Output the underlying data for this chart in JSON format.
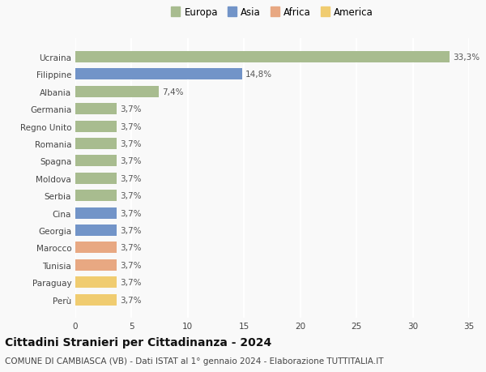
{
  "countries": [
    "Ucraina",
    "Filippine",
    "Albania",
    "Germania",
    "Regno Unito",
    "Romania",
    "Spagna",
    "Moldova",
    "Serbia",
    "Cina",
    "Georgia",
    "Marocco",
    "Tunisia",
    "Paraguay",
    "Perù"
  ],
  "values": [
    33.3,
    14.8,
    7.4,
    3.7,
    3.7,
    3.7,
    3.7,
    3.7,
    3.7,
    3.7,
    3.7,
    3.7,
    3.7,
    3.7,
    3.7
  ],
  "labels": [
    "33,3%",
    "14,8%",
    "7,4%",
    "3,7%",
    "3,7%",
    "3,7%",
    "3,7%",
    "3,7%",
    "3,7%",
    "3,7%",
    "3,7%",
    "3,7%",
    "3,7%",
    "3,7%",
    "3,7%"
  ],
  "continents": [
    "Europa",
    "Asia",
    "Europa",
    "Europa",
    "Europa",
    "Europa",
    "Europa",
    "Europa",
    "Europa",
    "Asia",
    "Asia",
    "Africa",
    "Africa",
    "America",
    "America"
  ],
  "continent_colors": {
    "Europa": "#a8bc8f",
    "Asia": "#7294c8",
    "Africa": "#e8a882",
    "America": "#f0cc70"
  },
  "legend_order": [
    "Europa",
    "Asia",
    "Africa",
    "America"
  ],
  "title": "Cittadini Stranieri per Cittadinanza - 2024",
  "subtitle": "COMUNE DI CAMBIASCA (VB) - Dati ISTAT al 1° gennaio 2024 - Elaborazione TUTTITALIA.IT",
  "xlim": [
    0,
    35
  ],
  "xticks": [
    0,
    5,
    10,
    15,
    20,
    25,
    30,
    35
  ],
  "background_color": "#f9f9f9",
  "grid_color": "#ffffff",
  "bar_height": 0.65,
  "title_fontsize": 10,
  "subtitle_fontsize": 7.5,
  "label_fontsize": 7.5,
  "tick_fontsize": 7.5,
  "legend_fontsize": 8.5
}
